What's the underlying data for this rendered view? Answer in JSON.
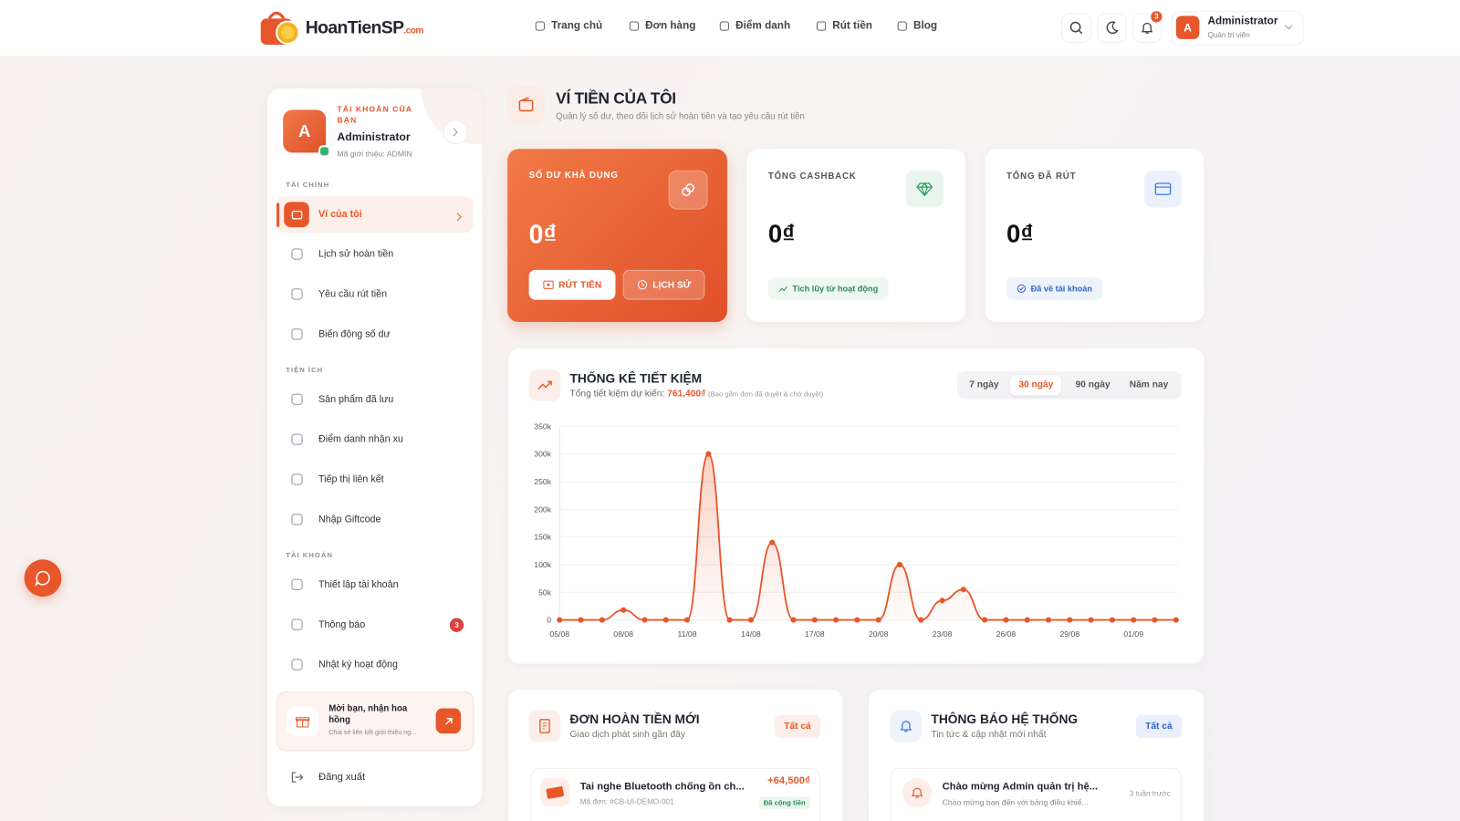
{
  "header": {
    "logo": "HoanTienSP",
    "logo_suffix": ".com",
    "nav": [
      "Trang chủ",
      "Đơn hàng",
      "Điểm danh",
      "Rút tiền",
      "Blog"
    ],
    "notification_count": 3,
    "user": {
      "avatar": "A",
      "name": "Administrator",
      "role": "Quản trị viên"
    }
  },
  "sidebar": {
    "profile": {
      "label": "TÀI KHOẢN CỦA BẠN",
      "avatar": "A",
      "name": "Administrator",
      "referral": "Mã giới thiệu: ADMIN"
    },
    "sections": [
      {
        "title": "TÀI CHÍNH",
        "items": [
          {
            "label": "Ví của tôi",
            "active": true
          },
          {
            "label": "Lịch sử hoàn tiền"
          },
          {
            "label": "Yêu cầu rút tiền"
          },
          {
            "label": "Biến động số dư"
          }
        ]
      },
      {
        "title": "TIỆN ÍCH",
        "items": [
          {
            "label": "Sản phẩm đã lưu"
          },
          {
            "label": "Điểm danh nhận xu"
          },
          {
            "label": "Tiếp thị liên kết"
          },
          {
            "label": "Nhập Giftcode"
          }
        ]
      },
      {
        "title": "TÀI KHOẢN",
        "items": [
          {
            "label": "Thiết lập tài khoản"
          },
          {
            "label": "Thông báo",
            "badge": 3
          },
          {
            "label": "Nhật ký hoạt động"
          }
        ]
      }
    ],
    "promo": {
      "title": "Mời bạn, nhận hoa hồng",
      "text": "Chia sẻ liên kết giới thiệu ng..."
    },
    "logout": "Đăng xuất"
  },
  "page": {
    "title": "VÍ TIỀN CỦA TÔI",
    "subtitle": "Quản lý số dư, theo dõi lịch sử hoàn tiền và tạo yêu cầu rút tiền"
  },
  "cards": [
    {
      "label": "SỐ DƯ KHẢ DỤNG",
      "value": "0₫",
      "buttons": [
        "RÚT TIỀN",
        "LỊCH SỬ"
      ]
    },
    {
      "label": "TỔNG CASHBACK",
      "value": "0₫",
      "tag": "Tích lũy từ hoạt động"
    },
    {
      "label": "TỔNG ĐÃ RÚT",
      "value": "0₫",
      "tag": "Đã về tài khoản"
    }
  ],
  "chart_data": {
    "type": "line",
    "title": "THỐNG KÊ TIẾT KIỆM",
    "total": {
      "label": "Tổng tiết kiệm dự kiến:",
      "value": "761,400₫"
    },
    "note": "(Bao gồm đơn đã duyệt & chờ duyệt)",
    "periods": [
      "7 ngày",
      "30 ngày",
      "90 ngày",
      "Năm nay"
    ],
    "active_period": 1,
    "categories": [
      "05/08",
      null,
      null,
      "08/08",
      null,
      null,
      "11/08",
      null,
      null,
      "14/08",
      null,
      null,
      "17/08",
      null,
      null,
      "20/08",
      null,
      null,
      "23/08",
      null,
      null,
      "26/08",
      null,
      null,
      "29/08",
      null,
      null,
      "01/09",
      null,
      null
    ],
    "values": [
      0,
      0,
      0,
      18000,
      0,
      0,
      0,
      300000,
      0,
      0,
      140000,
      0,
      0,
      0,
      0,
      0,
      100000,
      0,
      35000,
      55000,
      0,
      0,
      0,
      0,
      0,
      0,
      0,
      0,
      0,
      0
    ],
    "color": "#e8572b",
    "ylim": [
      0,
      350000
    ],
    "yticks": [
      0,
      {
        "value": 50000,
        "label": "50k"
      },
      {
        "value": 100000,
        "label": "100k"
      },
      {
        "value": 150000,
        "label": "150k"
      },
      {
        "value": 200000,
        "label": "200k"
      },
      {
        "value": 250000,
        "label": "250k"
      },
      {
        "value": 300000,
        "label": "300k"
      },
      {
        "value": 350000,
        "label": "350k"
      }
    ],
    "grid": true
  },
  "orders": {
    "title": "ĐƠN HOÀN TIỀN MỚI",
    "subtitle": "Giao dịch phát sinh gần đây",
    "all": "Tất cả",
    "items": [
      {
        "name": "Tai nghe Bluetooth chống ồn ch...",
        "code": "Mã đơn: #CB-UI-DEMO-001",
        "amount": "+64,500₫",
        "status": "Đã cộng tiền"
      }
    ]
  },
  "notices": {
    "title": "THÔNG BÁO HỆ THỐNG",
    "subtitle": "Tin tức & cập nhật mới nhất",
    "all": "Tất cả",
    "items": [
      {
        "title": "Chào mừng Admin quản trị hệ...",
        "text": "Chào mừng bạn đến với bảng điều khiể...",
        "time": "3 tuần trước"
      }
    ]
  }
}
